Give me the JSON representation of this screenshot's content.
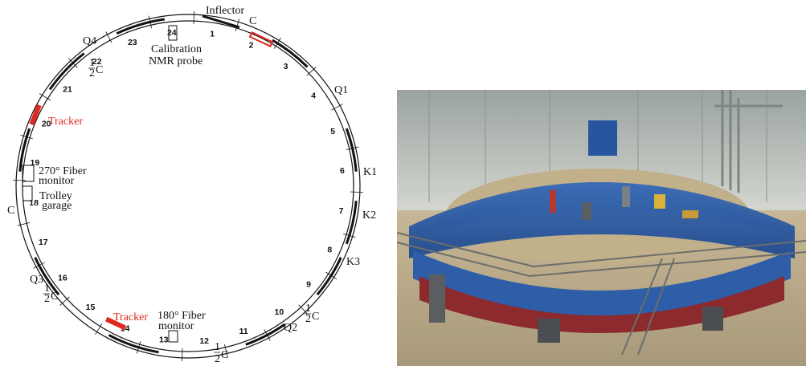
{
  "diagram": {
    "station_numbers": [
      "1",
      "2",
      "3",
      "4",
      "5",
      "6",
      "7",
      "8",
      "9",
      "10",
      "11",
      "12",
      "13",
      "14",
      "15",
      "16",
      "17",
      "18",
      "19",
      "20",
      "21",
      "22",
      "23",
      "24"
    ],
    "labels": {
      "inflector": "Inflector",
      "c_top": "C",
      "calibration": "Calibration",
      "nmr_probe": "NMR probe",
      "q1": "Q1",
      "k1": "K1",
      "k2": "K2",
      "k3": "K3",
      "q2": "Q2",
      "half_c_right": "C",
      "half_c_bottom": "C",
      "fiber_180": "180° Fiber",
      "monitor_180": "monitor",
      "tracker_bottom": "Tracker",
      "q3": "Q3",
      "half_c_left": "C",
      "c_left": "C",
      "trolley": "Trolley",
      "garage": "garage",
      "fiber_270": "270° Fiber",
      "monitor_270": "monitor",
      "tracker_left": "Tracker",
      "half_c_upper_left": "C",
      "q4": "Q4",
      "half_numerator": "1",
      "half_denominator": "2"
    },
    "colors": {
      "tracker": "#e0281e",
      "line": "#111111"
    }
  },
  "photo": {
    "subject": "storage-ring-magnet-photo",
    "colors": {
      "ring_blue": "#2f5fa8",
      "ring_red": "#8c2a2e",
      "floor": "#b9a98a",
      "wall": "#d9dcd8"
    }
  }
}
